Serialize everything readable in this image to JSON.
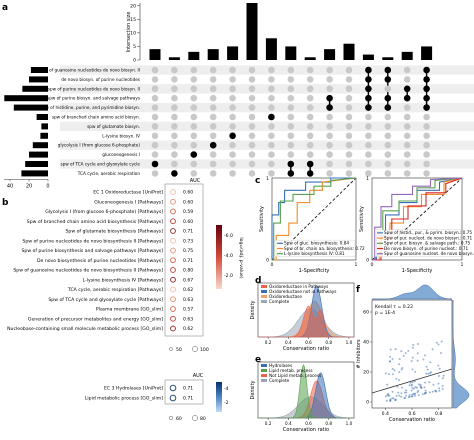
{
  "panels": {
    "a": "a",
    "b": "b",
    "c": "c",
    "d": "d",
    "e": "e",
    "f": "f"
  },
  "chart_data": [
    {
      "type": "bar",
      "panel": "a",
      "ylabel": "Intersection size",
      "yticks": [
        "0",
        "5",
        "10",
        "15",
        "20"
      ],
      "ylim": [
        0,
        21
      ],
      "values": [
        4,
        1,
        3,
        4,
        5,
        21,
        8,
        5,
        1,
        4,
        6,
        2,
        1,
        3,
        5
      ],
      "set_size_ticks": [
        "40",
        "20",
        "0"
      ],
      "sets": [
        {
          "name": "spw of guanosine nucleotides de novo biosyn. II",
          "size": 18
        },
        {
          "name": "de novo biosyn. of purine nucleotides",
          "size": 20
        },
        {
          "name": "spw of purine nucleotides de novo biosyn. II",
          "size": 27
        },
        {
          "name": "spw of purine biosyn. and salvage pathways",
          "size": 46
        },
        {
          "name": "spw of histidine, purine, and pyrimidine biosyn.",
          "size": 36
        },
        {
          "name": "spw of branched chain amino acid biosyn.",
          "size": 12
        },
        {
          "name": "spw of glutamate biosyn.",
          "size": 7
        },
        {
          "name": "L-lysine biosyn. IV",
          "size": 8
        },
        {
          "name": "glycolysis I (from glucose 6-phosphate)",
          "size": 16
        },
        {
          "name": "gluconeogenesis I",
          "size": 20
        },
        {
          "name": "spw of TCA cycle and glyoxylate cycle",
          "size": 24
        },
        {
          "name": "TCA cycle, aerobic respiration",
          "size": 28
        }
      ],
      "matrix_active": [
        [
          10
        ],
        [
          11
        ],
        [
          9
        ],
        [
          8
        ],
        [
          7
        ],
        [],
        [
          5
        ],
        [
          10,
          11
        ],
        [
          10,
          11
        ],
        [
          4,
          3
        ],
        [],
        [
          0,
          1,
          2,
          3,
          4
        ],
        [
          0,
          1,
          3,
          4
        ],
        [
          2,
          3
        ],
        [
          0,
          1,
          2,
          3,
          4
        ]
      ]
    },
    {
      "type": "scatter",
      "panel": "b",
      "auc_title": "AUC",
      "colorbar_label": "log₁₀(adj. p-value)",
      "colorbar_ticks": [
        "-6.0",
        "-4.0",
        "-2.0"
      ],
      "size_legend": [
        "50",
        "100"
      ],
      "groups": [
        {
          "items": [
            {
              "label": "EC 1 Oxidoreductase [UniProt]",
              "auc": "0.60"
            },
            {
              "label": "Gluconeogenesis I [Pathways]",
              "auc": "0.60"
            },
            {
              "label": "Glycolysis I (from glucose 6-phosphate) [Pathways]",
              "auc": "0.59"
            },
            {
              "label": "Spw of branched chain amino acid biosynthesis [Pathways]",
              "auc": "0.60"
            },
            {
              "label": "Spw of glutamate biosynthesis [Pathways]",
              "auc": "0.71"
            },
            {
              "label": "Spw of purine nucleotides de novo biosynthesis II [Pathways]",
              "auc": "0.73"
            },
            {
              "label": "Spw of purine biosynthesis and salvage pathways [Pathways]",
              "auc": "0.75"
            },
            {
              "label": "De novo biosynthesis of purine nucleotides [Pathways]",
              "auc": "0.71"
            },
            {
              "label": "Spw of guanosine nucleotides de novo biosynthesis II [Pathways]",
              "auc": "0.80"
            },
            {
              "label": "L-lysine biosynthesis IV [Pathways]",
              "auc": "0.67"
            },
            {
              "label": "TCA cycle, aerobic respiration [Pathways]",
              "auc": "0.62"
            },
            {
              "label": "Spw of TCA cycle and glyoxylate cycle [Pathways]",
              "auc": "0.63"
            },
            {
              "label": "Plasma membrane [GO_slim]",
              "auc": "0.57"
            },
            {
              "label": "Generation of precursor metabolites and energy [GO_slim]",
              "auc": "0.63"
            },
            {
              "label": "Nucleobase-containing small molecule metabolic process [GO_slim]",
              "auc": "0.62"
            }
          ]
        },
        {
          "auc_title": "AUC",
          "size_legend": [
            "60",
            "80"
          ],
          "colorbar_ticks": [
            "-4",
            "-2"
          ],
          "items": [
            {
              "label": "EC 3 Hydrolases [UniProt]",
              "auc": "0.71"
            },
            {
              "label": "Lipid metabolic process [GO_slim]",
              "auc": "0.71"
            }
          ]
        }
      ]
    },
    {
      "type": "line",
      "panel": "c",
      "xlabel": "1-Specificity",
      "ylabel": "Sensitivity",
      "ticks": [
        "0",
        "1"
      ],
      "plots": [
        {
          "legend": [
            {
              "label": "Spw of gluc. biosynthesis: 0.84",
              "color": "#3b6fb6"
            },
            {
              "label": "Spw of br. chain aa. biosynthesis: 0.72",
              "color": "#f28e2b"
            },
            {
              "label": "L-lysine biosynthesis IV: 0.81",
              "color": "#59a14f"
            }
          ]
        },
        {
          "legend": [
            {
              "label": "Spw of histid., pur., & pyrim. biosyn.: 0.75",
              "color": "#3b6fb6"
            },
            {
              "label": "Spw of pur. nucleot. de novo biosyn.: 0.71",
              "color": "#f28e2b"
            },
            {
              "label": "Spw of pur. biosyn. & salvage path.: 0.75",
              "color": "#59a14f"
            },
            {
              "label": "De novo biosyn. of purine nucleot.: 0.71",
              "color": "#d62728"
            },
            {
              "label": "Spw of guanosine nucleot. de novo biosyn.: 0.80",
              "color": "#9467bd"
            }
          ]
        }
      ]
    },
    {
      "type": "area",
      "panel": "d",
      "xlabel": "Conservation ratio",
      "ylabel": "Density",
      "xticks": [
        "0.2",
        "0.4",
        "0.6",
        "0.8",
        "1.0"
      ],
      "legend": [
        {
          "label": "Oxidoreductase in Pathways",
          "color": "#e8644a"
        },
        {
          "label": "Oxidoreductase not in Pathways",
          "color": "#3b6fb6"
        },
        {
          "label": "Oxidoreductase",
          "color": "#f6a06a"
        },
        {
          "label": "Complete",
          "color": "#9aa6b6"
        }
      ]
    },
    {
      "type": "area",
      "panel": "e",
      "xlabel": "Conservation ratio",
      "ylabel": "Density",
      "xticks": [
        "0.2",
        "0.4",
        "0.6",
        "0.8",
        "1.0"
      ],
      "legend": [
        {
          "label": "Hydrolases",
          "color": "#3b6fb6"
        },
        {
          "label": "Lipid metab. process",
          "color": "#59a14f"
        },
        {
          "label": "Not Lipid metab. process",
          "color": "#e8644a"
        },
        {
          "label": "Complete",
          "color": "#9aa6b6"
        }
      ]
    },
    {
      "type": "scatter",
      "panel": "f",
      "xlabel": "Conservation ratio",
      "ylabel": "# Inhibitors",
      "xticks": [
        "0.4",
        "0.6",
        "0.8"
      ],
      "yticks": [
        "0",
        "20",
        "40",
        "60"
      ],
      "annotation": [
        "Kendall τ = 0.22",
        "p = 1E-4"
      ]
    }
  ]
}
